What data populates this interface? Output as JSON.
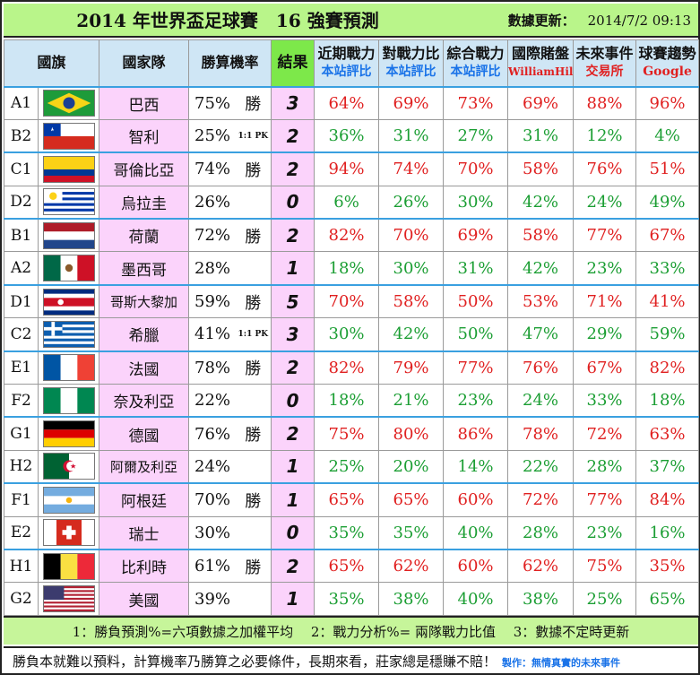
{
  "header": {
    "title": "2014 年世界盃足球賽　16 強賽預測",
    "update_label": "數據更新：",
    "update_value": "2014/7/2 09:13"
  },
  "columns": {
    "flag": "國旗",
    "team": "國家隊",
    "prob": "勝算機率",
    "result": "結果",
    "recent": "近期戰力",
    "recent_sub": "本站評比",
    "h2h": "對戰力比",
    "h2h_sub": "本站評比",
    "overall": "綜合戰力",
    "overall_sub": "本站評比",
    "betting": "國際賭盤",
    "betting_sub": "WilliamHill",
    "future": "未來事件",
    "future_sub": "交易所",
    "trend": "球賽趨勢",
    "trend_sub": "Google"
  },
  "rows": [
    {
      "code": "A1",
      "flag": "brazil",
      "team": "巴西",
      "prob": "75%",
      "win": "勝",
      "score": "3",
      "recent": "64%",
      "h2h": "69%",
      "overall": "73%",
      "betting": "69%",
      "future": "88%",
      "trend": "96%",
      "color": "red"
    },
    {
      "code": "B2",
      "flag": "chile",
      "team": "智利",
      "prob": "25%",
      "win": "1:1 PK",
      "score": "2",
      "recent": "36%",
      "h2h": "31%",
      "overall": "27%",
      "betting": "31%",
      "future": "12%",
      "trend": "4%",
      "color": "green"
    },
    {
      "code": "C1",
      "flag": "colombia",
      "team": "哥倫比亞",
      "prob": "74%",
      "win": "勝",
      "score": "2",
      "recent": "94%",
      "h2h": "74%",
      "overall": "70%",
      "betting": "58%",
      "future": "76%",
      "trend": "51%",
      "color": "red"
    },
    {
      "code": "D2",
      "flag": "uruguay",
      "team": "烏拉圭",
      "prob": "26%",
      "win": "",
      "score": "0",
      "recent": "6%",
      "h2h": "26%",
      "overall": "30%",
      "betting": "42%",
      "future": "24%",
      "trend": "49%",
      "color": "green"
    },
    {
      "code": "B1",
      "flag": "netherlands",
      "team": "荷蘭",
      "prob": "72%",
      "win": "勝",
      "score": "2",
      "recent": "82%",
      "h2h": "70%",
      "overall": "69%",
      "betting": "58%",
      "future": "77%",
      "trend": "67%",
      "color": "red"
    },
    {
      "code": "A2",
      "flag": "mexico",
      "team": "墨西哥",
      "prob": "28%",
      "win": "",
      "score": "1",
      "recent": "18%",
      "h2h": "30%",
      "overall": "31%",
      "betting": "42%",
      "future": "23%",
      "trend": "33%",
      "color": "green"
    },
    {
      "code": "D1",
      "flag": "costarica",
      "team": "哥斯大黎加",
      "prob": "59%",
      "win": "勝",
      "score": "5",
      "recent": "70%",
      "h2h": "58%",
      "overall": "50%",
      "betting": "53%",
      "future": "71%",
      "trend": "41%",
      "color": "red"
    },
    {
      "code": "C2",
      "flag": "greece",
      "team": "希臘",
      "prob": "41%",
      "win": "1:1 PK",
      "score": "3",
      "recent": "30%",
      "h2h": "42%",
      "overall": "50%",
      "betting": "47%",
      "future": "29%",
      "trend": "59%",
      "color": "green"
    },
    {
      "code": "E1",
      "flag": "france",
      "team": "法國",
      "prob": "78%",
      "win": "勝",
      "score": "2",
      "recent": "82%",
      "h2h": "79%",
      "overall": "77%",
      "betting": "76%",
      "future": "67%",
      "trend": "82%",
      "color": "red"
    },
    {
      "code": "F2",
      "flag": "nigeria",
      "team": "奈及利亞",
      "prob": "22%",
      "win": "",
      "score": "0",
      "recent": "18%",
      "h2h": "21%",
      "overall": "23%",
      "betting": "24%",
      "future": "33%",
      "trend": "18%",
      "color": "green"
    },
    {
      "code": "G1",
      "flag": "germany",
      "team": "德國",
      "prob": "76%",
      "win": "勝",
      "score": "2",
      "recent": "75%",
      "h2h": "80%",
      "overall": "86%",
      "betting": "78%",
      "future": "72%",
      "trend": "63%",
      "color": "red"
    },
    {
      "code": "H2",
      "flag": "algeria",
      "team": "阿爾及利亞",
      "prob": "24%",
      "win": "",
      "score": "1",
      "recent": "25%",
      "h2h": "20%",
      "overall": "14%",
      "betting": "22%",
      "future": "28%",
      "trend": "37%",
      "color": "green"
    },
    {
      "code": "F1",
      "flag": "argentina",
      "team": "阿根廷",
      "prob": "70%",
      "win": "勝",
      "score": "1",
      "recent": "65%",
      "h2h": "65%",
      "overall": "60%",
      "betting": "72%",
      "future": "77%",
      "trend": "84%",
      "color": "red"
    },
    {
      "code": "E2",
      "flag": "switzerland",
      "team": "瑞士",
      "prob": "30%",
      "win": "",
      "score": "0",
      "recent": "35%",
      "h2h": "35%",
      "overall": "40%",
      "betting": "28%",
      "future": "23%",
      "trend": "16%",
      "color": "green"
    },
    {
      "code": "H1",
      "flag": "belgium",
      "team": "比利時",
      "prob": "61%",
      "win": "勝",
      "score": "2",
      "recent": "65%",
      "h2h": "62%",
      "overall": "60%",
      "betting": "62%",
      "future": "75%",
      "trend": "35%",
      "color": "red"
    },
    {
      "code": "G2",
      "flag": "usa",
      "team": "美國",
      "prob": "39%",
      "win": "",
      "score": "1",
      "recent": "35%",
      "h2h": "38%",
      "overall": "40%",
      "betting": "38%",
      "future": "25%",
      "trend": "65%",
      "color": "green"
    }
  ],
  "footer": {
    "notes": "1：勝負預測%=六項數據之加權平均　 2：戰力分析%= 兩隊戰力比值　 3：數據不定時更新",
    "disclaimer": "勝負本就難以預料，計算機率乃勝算之必要條件，長期來看，莊家總是穩賺不賠！",
    "credit": "製作：無情真實的未來事件"
  },
  "colors": {
    "header_bg": "#b9f58a",
    "team_bg": "#fbd3fb",
    "result_header_bg": "#7de84a",
    "col_header_bg": "#cfe6f5",
    "win_color": "#e02020",
    "lose_color": "#1b9e33",
    "divider": "#3aa0e0"
  }
}
